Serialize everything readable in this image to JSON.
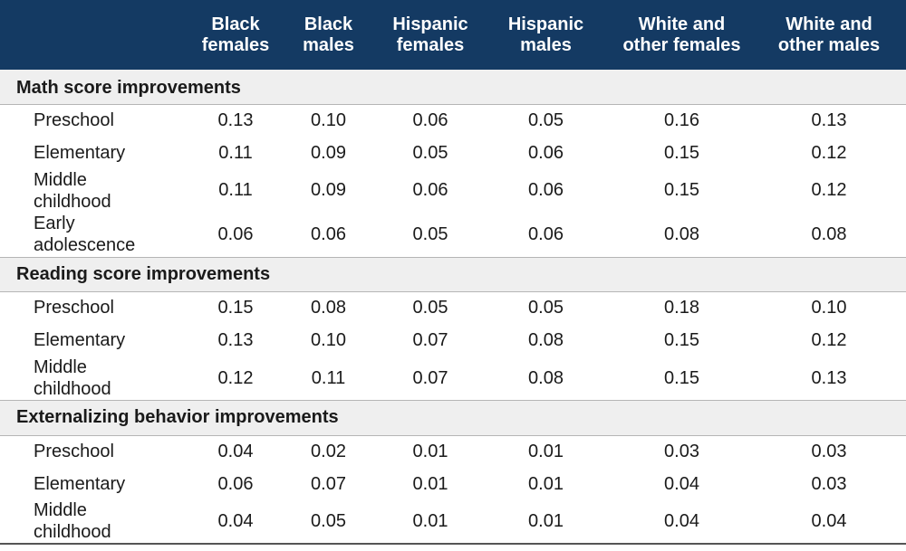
{
  "chart_data": {
    "type": "table",
    "columns": [
      "Black females",
      "Black males",
      "Hispanic females",
      "Hispanic males",
      "White and other females",
      "White and other males"
    ],
    "sections": [
      {
        "title": "Math score improvements",
        "rows": [
          {
            "label": "Preschool",
            "values": [
              "0.13",
              "0.10",
              "0.06",
              "0.05",
              "0.16",
              "0.13"
            ]
          },
          {
            "label": "Elementary",
            "values": [
              "0.11",
              "0.09",
              "0.05",
              "0.06",
              "0.15",
              "0.12"
            ]
          },
          {
            "label": "Middle childhood",
            "values": [
              "0.11",
              "0.09",
              "0.06",
              "0.06",
              "0.15",
              "0.12"
            ]
          },
          {
            "label": "Early adolescence",
            "values": [
              "0.06",
              "0.06",
              "0.05",
              "0.06",
              "0.08",
              "0.08"
            ]
          }
        ]
      },
      {
        "title": "Reading score improvements",
        "rows": [
          {
            "label": "Preschool",
            "values": [
              "0.15",
              "0.08",
              "0.05",
              "0.05",
              "0.18",
              "0.10"
            ]
          },
          {
            "label": "Elementary",
            "values": [
              "0.13",
              "0.10",
              "0.07",
              "0.08",
              "0.15",
              "0.12"
            ]
          },
          {
            "label": "Middle childhood",
            "values": [
              "0.12",
              "0.11",
              "0.07",
              "0.08",
              "0.15",
              "0.13"
            ]
          }
        ]
      },
      {
        "title": "Externalizing behavior improvements",
        "rows": [
          {
            "label": "Preschool",
            "values": [
              "0.04",
              "0.02",
              "0.01",
              "0.01",
              "0.03",
              "0.03"
            ]
          },
          {
            "label": "Elementary",
            "values": [
              "0.06",
              "0.07",
              "0.01",
              "0.01",
              "0.04",
              "0.03"
            ]
          },
          {
            "label": "Middle childhood",
            "values": [
              "0.04",
              "0.05",
              "0.01",
              "0.01",
              "0.04",
              "0.04"
            ]
          }
        ]
      }
    ],
    "colors": {
      "header_background": "#143a63",
      "header_text": "#ffffff",
      "section_background": "#efefef"
    }
  }
}
